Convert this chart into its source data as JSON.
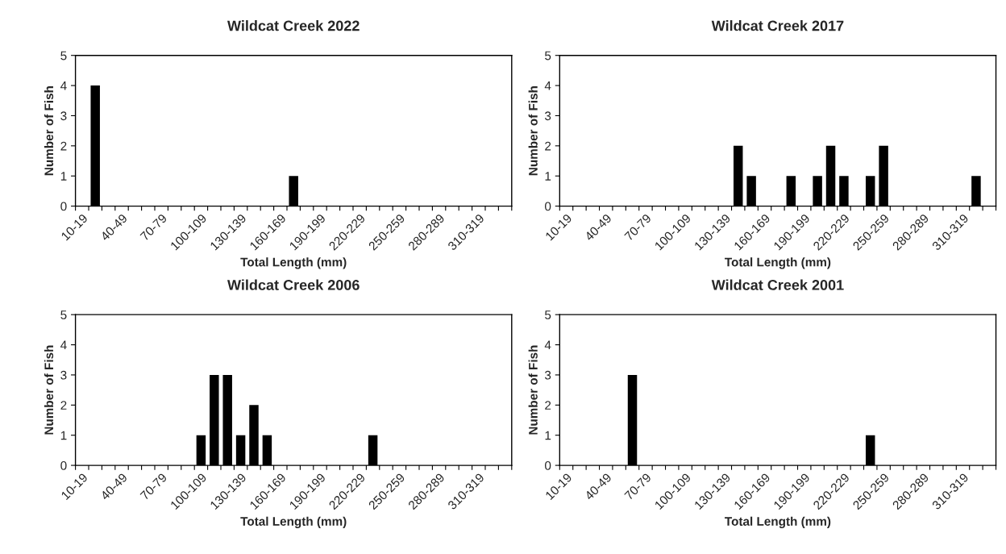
{
  "chart_data": [
    {
      "type": "bar",
      "title": "Wildcat Creek 2022",
      "xlabel": "Total Length (mm)",
      "ylabel": "Number of Fish",
      "categories": [
        "10-19",
        null,
        null,
        "40-49",
        null,
        null,
        "70-79",
        null,
        null,
        "100-109",
        null,
        null,
        "130-139",
        null,
        null,
        "160-169",
        null,
        null,
        "190-199",
        null,
        null,
        "220-229",
        null,
        null,
        "250-259",
        null,
        null,
        "280-289",
        null,
        null,
        "310-319",
        null,
        null
      ],
      "values": [
        0,
        4,
        0,
        0,
        0,
        0,
        0,
        0,
        0,
        0,
        0,
        0,
        0,
        0,
        0,
        0,
        1,
        0,
        0,
        0,
        0,
        0,
        0,
        0,
        0,
        0,
        0,
        0,
        0,
        0,
        0,
        0,
        0
      ],
      "color": "#000000",
      "ylim": [
        0,
        5
      ],
      "yticks": [
        0,
        1,
        2,
        3,
        4,
        5
      ],
      "grid": false,
      "legend": false
    },
    {
      "type": "bar",
      "title": "Wildcat Creek 2017",
      "xlabel": "Total Length (mm)",
      "ylabel": "Number of Fish",
      "categories": [
        "10-19",
        null,
        null,
        "40-49",
        null,
        null,
        "70-79",
        null,
        null,
        "100-109",
        null,
        null,
        "130-139",
        null,
        null,
        "160-169",
        null,
        null,
        "190-199",
        null,
        null,
        "220-229",
        null,
        null,
        "250-259",
        null,
        null,
        "280-289",
        null,
        null,
        "310-319",
        null,
        null
      ],
      "values": [
        0,
        0,
        0,
        0,
        0,
        0,
        0,
        0,
        0,
        0,
        0,
        0,
        0,
        2,
        1,
        0,
        0,
        1,
        0,
        1,
        2,
        1,
        0,
        1,
        2,
        0,
        0,
        0,
        0,
        0,
        0,
        1,
        0
      ],
      "color": "#000000",
      "ylim": [
        0,
        5
      ],
      "yticks": [
        0,
        1,
        2,
        3,
        4,
        5
      ],
      "grid": false,
      "legend": false
    },
    {
      "type": "bar",
      "title": "Wildcat Creek 2006",
      "xlabel": "Total Length (mm)",
      "ylabel": "Number of Fish",
      "categories": [
        "10-19",
        null,
        null,
        "40-49",
        null,
        null,
        "70-79",
        null,
        null,
        "100-109",
        null,
        null,
        "130-139",
        null,
        null,
        "160-169",
        null,
        null,
        "190-199",
        null,
        null,
        "220-229",
        null,
        null,
        "250-259",
        null,
        null,
        "280-289",
        null,
        null,
        "310-319",
        null,
        null
      ],
      "values": [
        0,
        0,
        0,
        0,
        0,
        0,
        0,
        0,
        0,
        1,
        3,
        3,
        1,
        2,
        1,
        0,
        0,
        0,
        0,
        0,
        0,
        0,
        1,
        0,
        0,
        0,
        0,
        0,
        0,
        0,
        0,
        0,
        0
      ],
      "color": "#000000",
      "ylim": [
        0,
        5
      ],
      "yticks": [
        0,
        1,
        2,
        3,
        4,
        5
      ],
      "grid": false,
      "legend": false
    },
    {
      "type": "bar",
      "title": "Wildcat Creek 2001",
      "xlabel": "Total Length (mm)",
      "ylabel": "Number of Fish",
      "categories": [
        "10-19",
        null,
        null,
        "40-49",
        null,
        null,
        "70-79",
        null,
        null,
        "100-109",
        null,
        null,
        "130-139",
        null,
        null,
        "160-169",
        null,
        null,
        "190-199",
        null,
        null,
        "220-229",
        null,
        null,
        "250-259",
        null,
        null,
        "280-289",
        null,
        null,
        "310-319",
        null,
        null
      ],
      "values": [
        0,
        0,
        0,
        0,
        0,
        3,
        0,
        0,
        0,
        0,
        0,
        0,
        0,
        0,
        0,
        0,
        0,
        0,
        0,
        0,
        0,
        0,
        0,
        1,
        0,
        0,
        0,
        0,
        0,
        0,
        0,
        0,
        0
      ],
      "color": "#000000",
      "ylim": [
        0,
        5
      ],
      "yticks": [
        0,
        1,
        2,
        3,
        4,
        5
      ],
      "grid": false,
      "legend": false
    }
  ]
}
